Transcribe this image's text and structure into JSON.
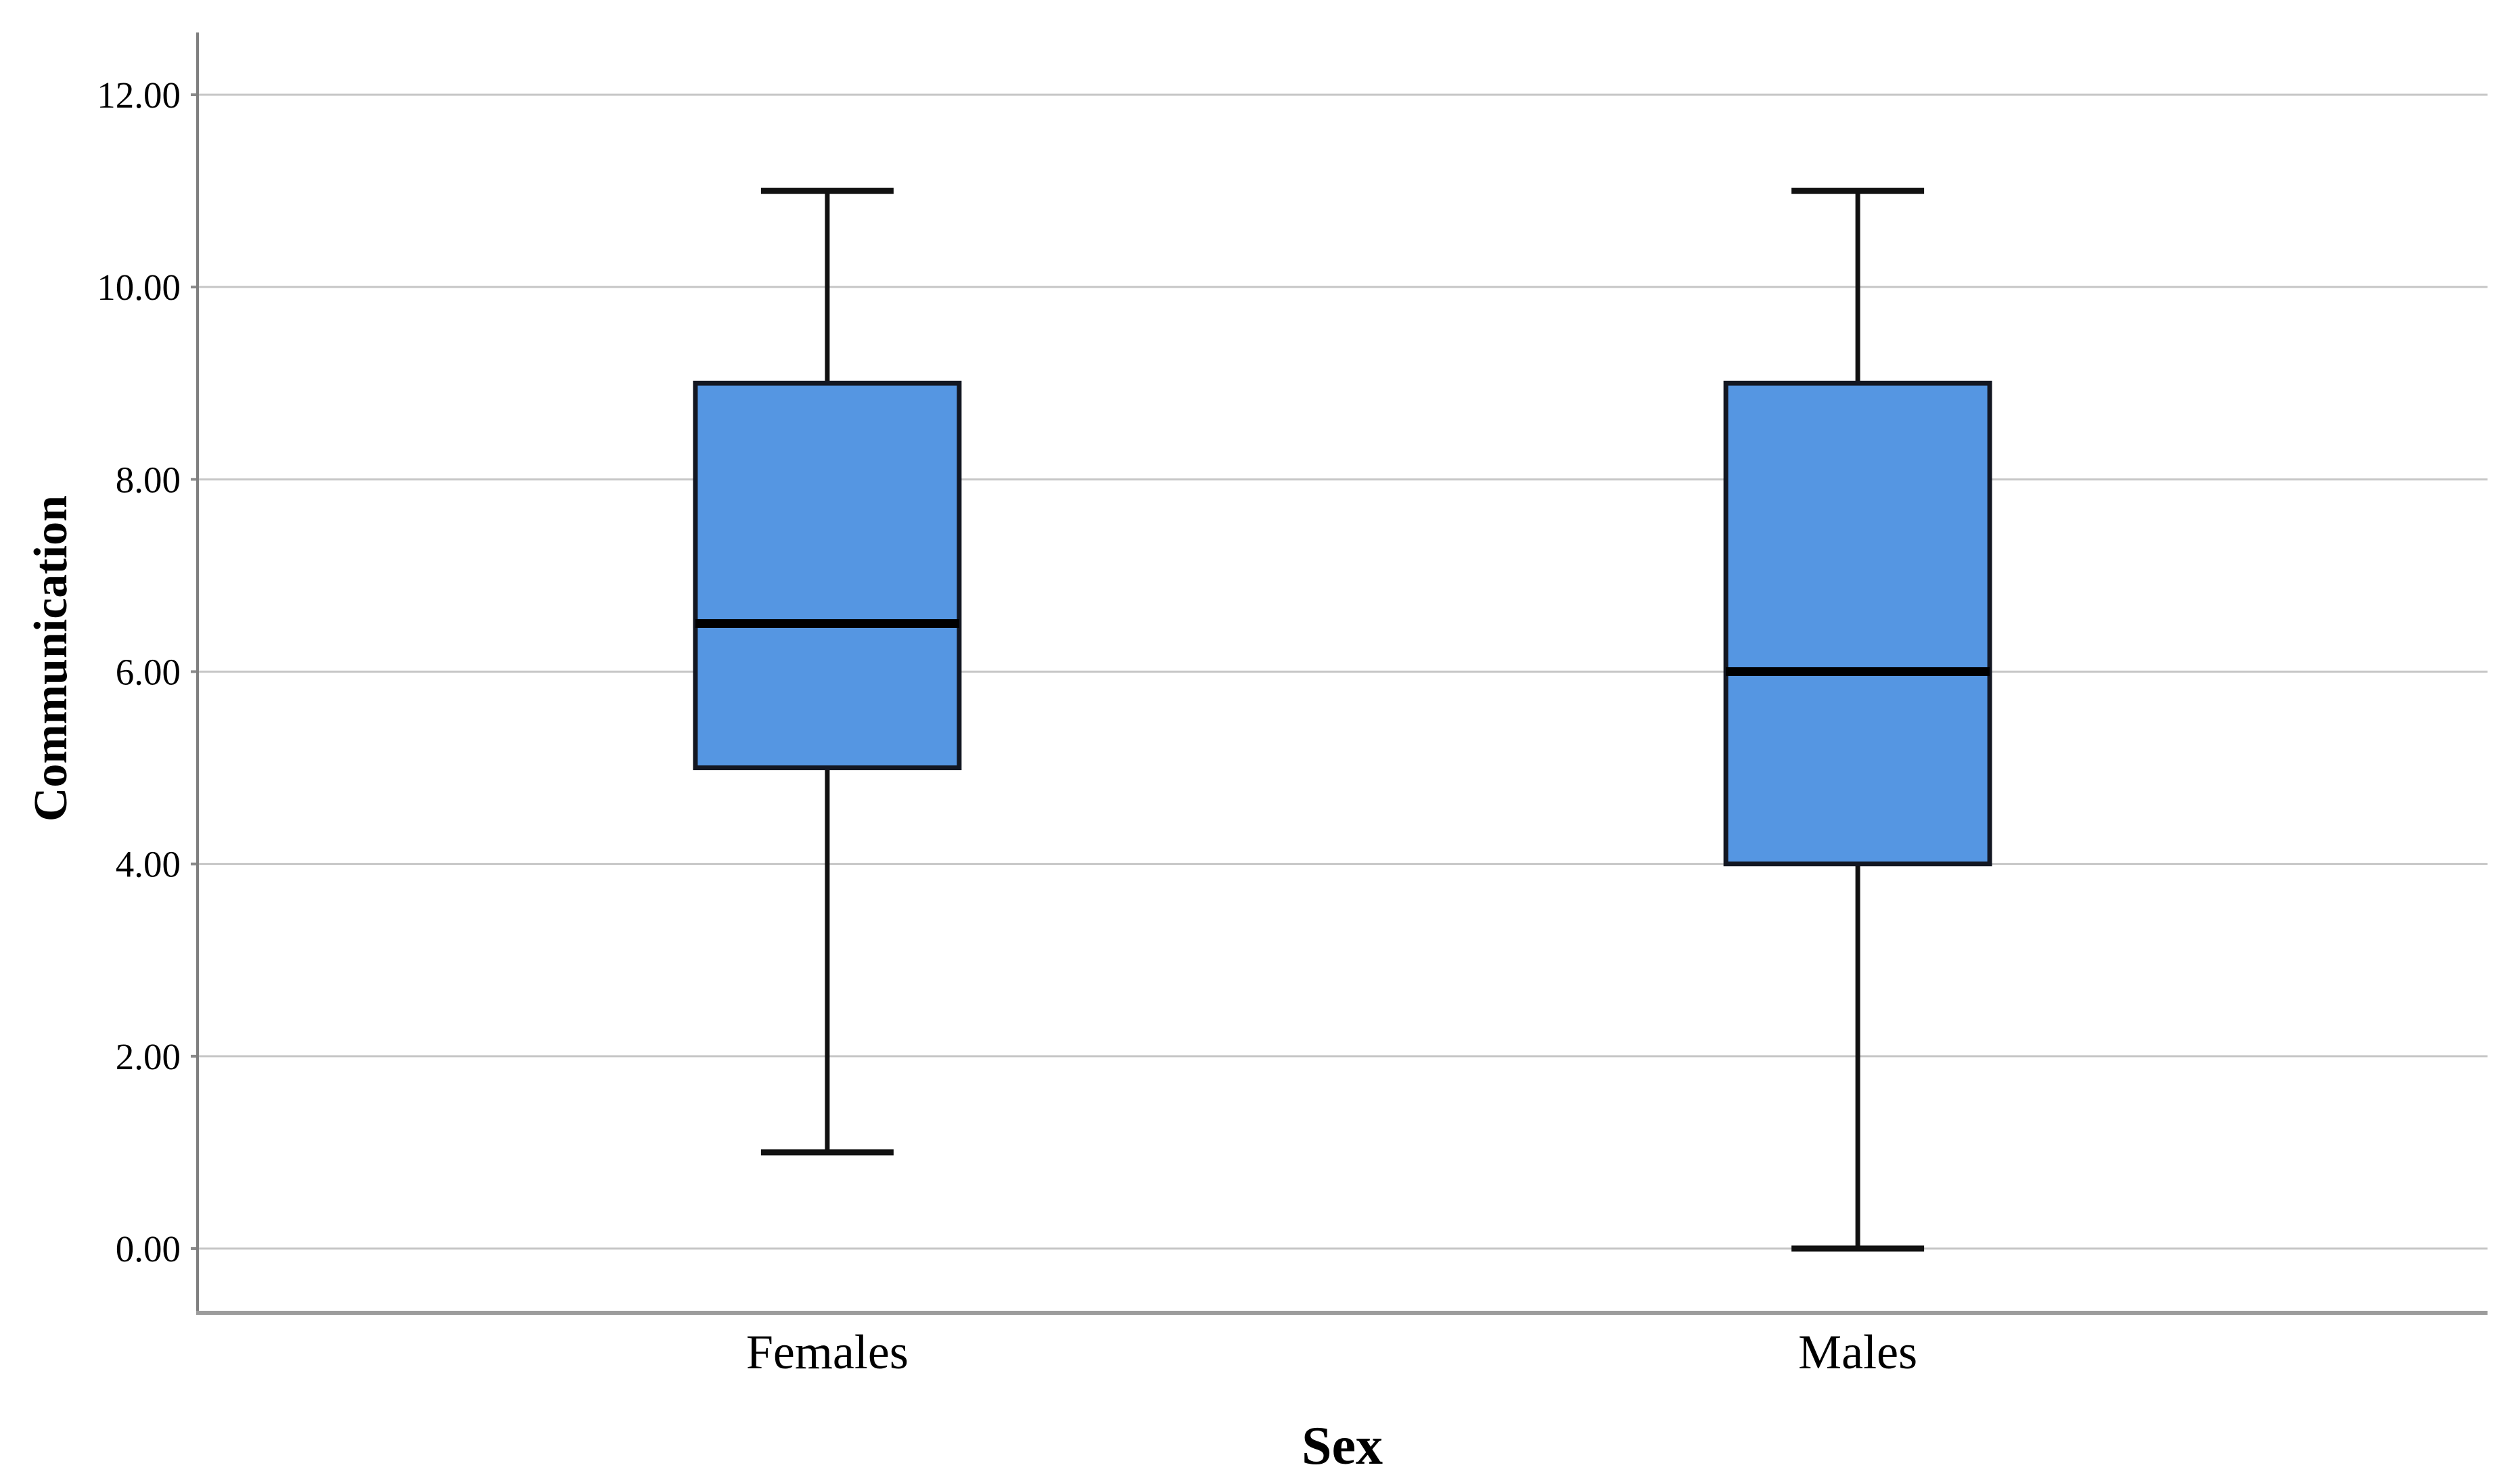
{
  "figure": {
    "background": "#ffffff",
    "text_color": "#000000",
    "box_fill": "#5596E2",
    "box_border": "#131722",
    "median_color": "#000000",
    "whisker_color": "#111111",
    "gridline_color": "#C6C6C6",
    "axis_line_color": "#7F7F7F",
    "bottom_frame_color": "#9C9C9C",
    "tick_mark_color": "#8A8A8A"
  },
  "chart_data": {
    "type": "boxplot",
    "title": "",
    "xlabel": "Sex",
    "ylabel": "Communication",
    "categories": [
      "Females",
      "Males"
    ],
    "series": [
      {
        "name": "Females",
        "min": 1,
        "q1": 5,
        "median": 6.5,
        "q3": 9,
        "max": 11,
        "outliers": []
      },
      {
        "name": "Males",
        "min": 0,
        "q1": 4,
        "median": 6,
        "q3": 9,
        "max": 11,
        "outliers": []
      }
    ],
    "ylim": [
      0,
      12
    ],
    "yticks": [
      0,
      2,
      4,
      6,
      8,
      10,
      12
    ],
    "ytick_labels": [
      "0.00",
      "2.00",
      "4.00",
      "6.00",
      "8.00",
      "10.00",
      "12.00"
    ],
    "grid": true,
    "legend": false,
    "frame": "left-and-bottom-only"
  }
}
